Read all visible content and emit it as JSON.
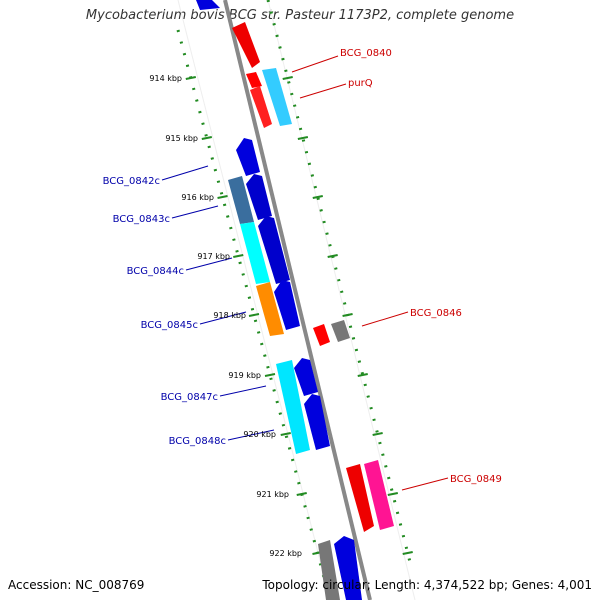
{
  "title": "Mycobacterium bovis BCG str. Pasteur 1173P2, complete genome",
  "accession": "Accession: NC_008769",
  "topology": "Topology: circular; Length: 4,374,522 bp; Genes: 4,001",
  "ticks": [
    "914 kbp",
    "915 kbp",
    "916 kbp",
    "917 kbp",
    "918 kbp",
    "919 kbp",
    "920 kbp",
    "921 kbp",
    "922 kbp"
  ],
  "gene_labels": {
    "plus": [
      "BCG_0840",
      "purQ",
      "BCG_0846",
      "BCG_0849"
    ],
    "minus": [
      "BCG_0842c",
      "BCG_0843c",
      "BCG_0844c",
      "BCG_0845c",
      "BCG_0847c",
      "BCG_0848c"
    ]
  },
  "colors": {
    "plus_label": "#cc0000",
    "minus_label": "#0000aa",
    "tick": "#008000",
    "backbone": "#808080"
  }
}
